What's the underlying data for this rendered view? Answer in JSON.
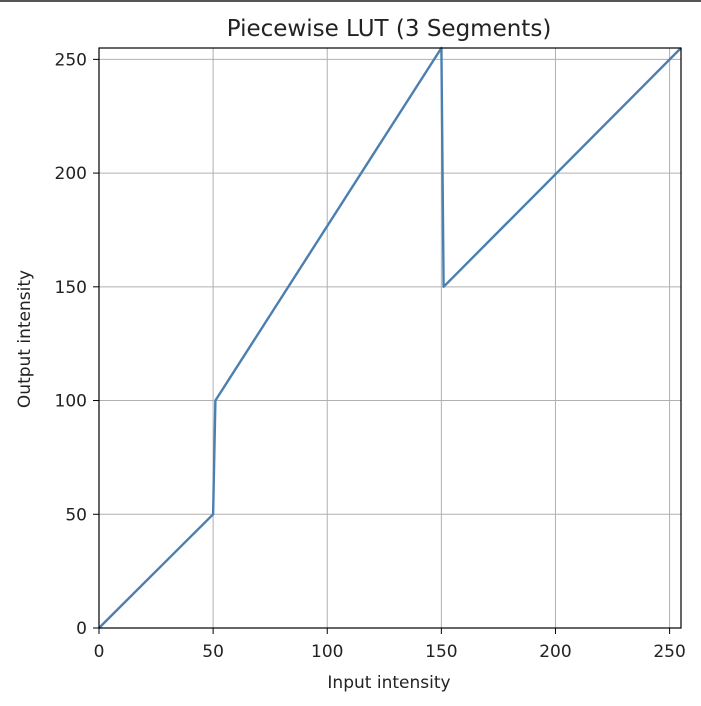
{
  "chart_data": {
    "type": "line",
    "title": "Piecewise LUT (3 Segments)",
    "xlabel": "Input intensity",
    "ylabel": "Output intensity",
    "xlim": [
      0,
      255
    ],
    "ylim": [
      0,
      255
    ],
    "x_ticks": [
      0,
      50,
      100,
      150,
      200,
      250
    ],
    "y_ticks": [
      0,
      50,
      100,
      150,
      200,
      250
    ],
    "grid": true,
    "series": [
      {
        "color": "#4a7fb0",
        "points": [
          [
            0,
            0
          ],
          [
            50,
            50
          ],
          [
            51,
            100
          ],
          [
            150,
            255
          ],
          [
            151,
            150
          ],
          [
            255,
            255
          ]
        ]
      }
    ]
  }
}
